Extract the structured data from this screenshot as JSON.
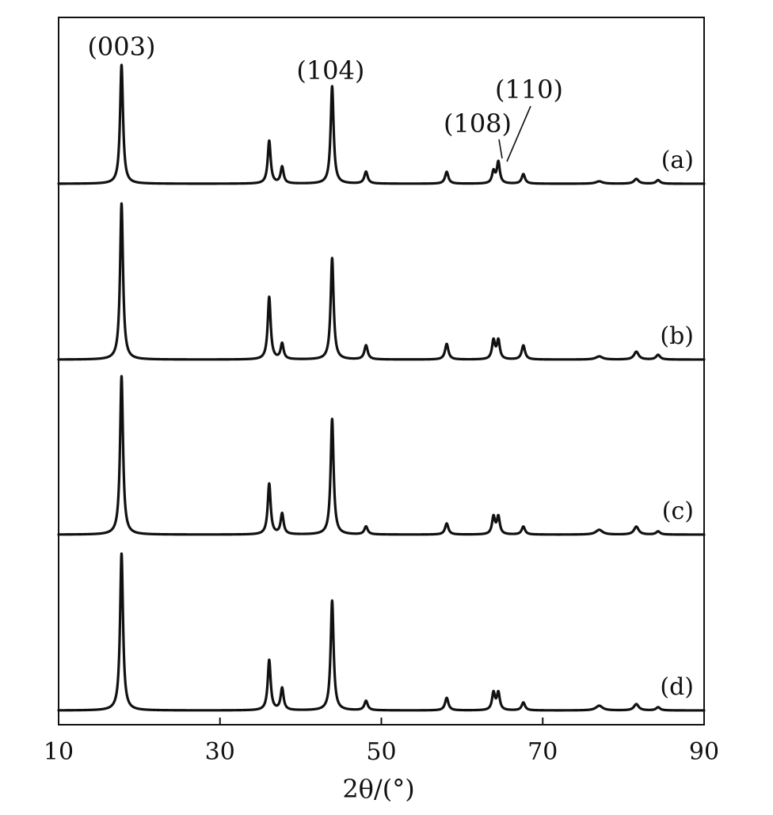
{
  "chart_data": {
    "type": "line",
    "xlabel": "2θ/(°)",
    "ylabel": "",
    "xlim": [
      10,
      90
    ],
    "xticks": [
      10,
      30,
      50,
      70,
      90
    ],
    "grid": false,
    "peak_positions": [
      17.8,
      36.1,
      37.7,
      43.9,
      48.1,
      58.1,
      63.9,
      64.5,
      67.6,
      77.0,
      81.6,
      84.3
    ],
    "series": [
      {
        "name": "(a)",
        "intensities": [
          1.0,
          0.36,
          0.14,
          0.82,
          0.1,
          0.1,
          0.1,
          0.18,
          0.08,
          0.02,
          0.04,
          0.03
        ]
      },
      {
        "name": "(b)",
        "intensities": [
          1.0,
          0.4,
          0.1,
          0.65,
          0.09,
          0.1,
          0.12,
          0.12,
          0.09,
          0.02,
          0.05,
          0.03
        ]
      },
      {
        "name": "(c)",
        "intensities": [
          1.0,
          0.32,
          0.13,
          0.73,
          0.05,
          0.07,
          0.11,
          0.11,
          0.05,
          0.03,
          0.05,
          0.02
        ]
      },
      {
        "name": "(d)",
        "intensities": [
          1.0,
          0.32,
          0.14,
          0.7,
          0.06,
          0.08,
          0.11,
          0.11,
          0.05,
          0.03,
          0.04,
          0.02
        ]
      }
    ],
    "annotations": [
      {
        "label": "(003)",
        "x": 17.8
      },
      {
        "label": "(104)",
        "x": 43.9
      },
      {
        "label": "(108)",
        "x": 63.9
      },
      {
        "label": "(110)",
        "x": 64.5
      }
    ]
  }
}
